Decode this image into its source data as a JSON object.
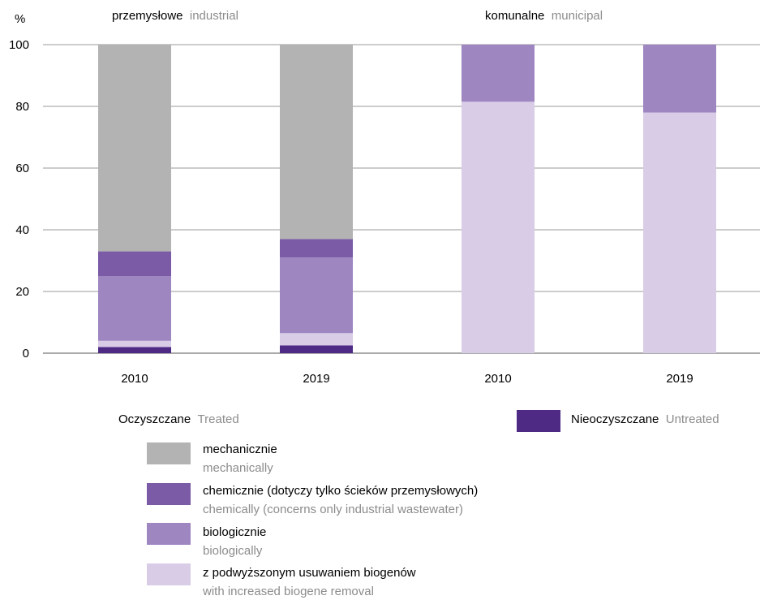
{
  "chart_data": {
    "type": "bar",
    "stacked": true,
    "ylabel": "%",
    "ylim": [
      0,
      100
    ],
    "yticks": [
      0,
      20,
      40,
      60,
      80,
      100
    ],
    "grid": true,
    "groups": [
      {
        "label_pl": "przemysłowe",
        "label_en": "industrial",
        "categories": [
          "2010",
          "2019"
        ]
      },
      {
        "label_pl": "komunalne",
        "label_en": "municipal",
        "categories": [
          "2010",
          "2019"
        ]
      }
    ],
    "categories": [
      "2010",
      "2019",
      "2010",
      "2019"
    ],
    "series": [
      {
        "name": "Nieoczyszczane",
        "color": "#4e2a84",
        "values": [
          2,
          2.5,
          0,
          0
        ]
      },
      {
        "name": "z podwyższonym usuwaniem biogenów",
        "color": "#d9cce6",
        "values": [
          2,
          4,
          81.5,
          78
        ]
      },
      {
        "name": "biologicznie",
        "color": "#9e86c1",
        "values": [
          21,
          24.5,
          18.5,
          22
        ]
      },
      {
        "name": "chemicznie (dotyczy tylko ścieków przemysłowych)",
        "color": "#7b5aa6",
        "values": [
          8,
          6,
          0,
          0
        ]
      },
      {
        "name": "mechanicznie",
        "color": "#b3b3b3",
        "values": [
          67,
          63,
          0,
          0
        ]
      }
    ]
  },
  "legend": {
    "treated_pl": "Oczyszczane",
    "treated_en": "Treated",
    "untreated_pl": "Nieoczyszczane",
    "untreated_en": "Untreated",
    "items": [
      {
        "pl": "mechanicznie",
        "en": "mechanically",
        "color": "#b3b3b3"
      },
      {
        "pl": "chemicznie (dotyczy tylko ścieków przemysłowych)",
        "en": "chemically (concerns only industrial wastewater)",
        "color": "#7b5aa6"
      },
      {
        "pl": "biologicznie",
        "en": "biologically",
        "color": "#9e86c1"
      },
      {
        "pl": "z podwyższonym usuwaniem biogenów",
        "en": "with increased biogene removal",
        "color": "#d9cce6"
      }
    ],
    "untreated_color": "#4e2a84"
  }
}
